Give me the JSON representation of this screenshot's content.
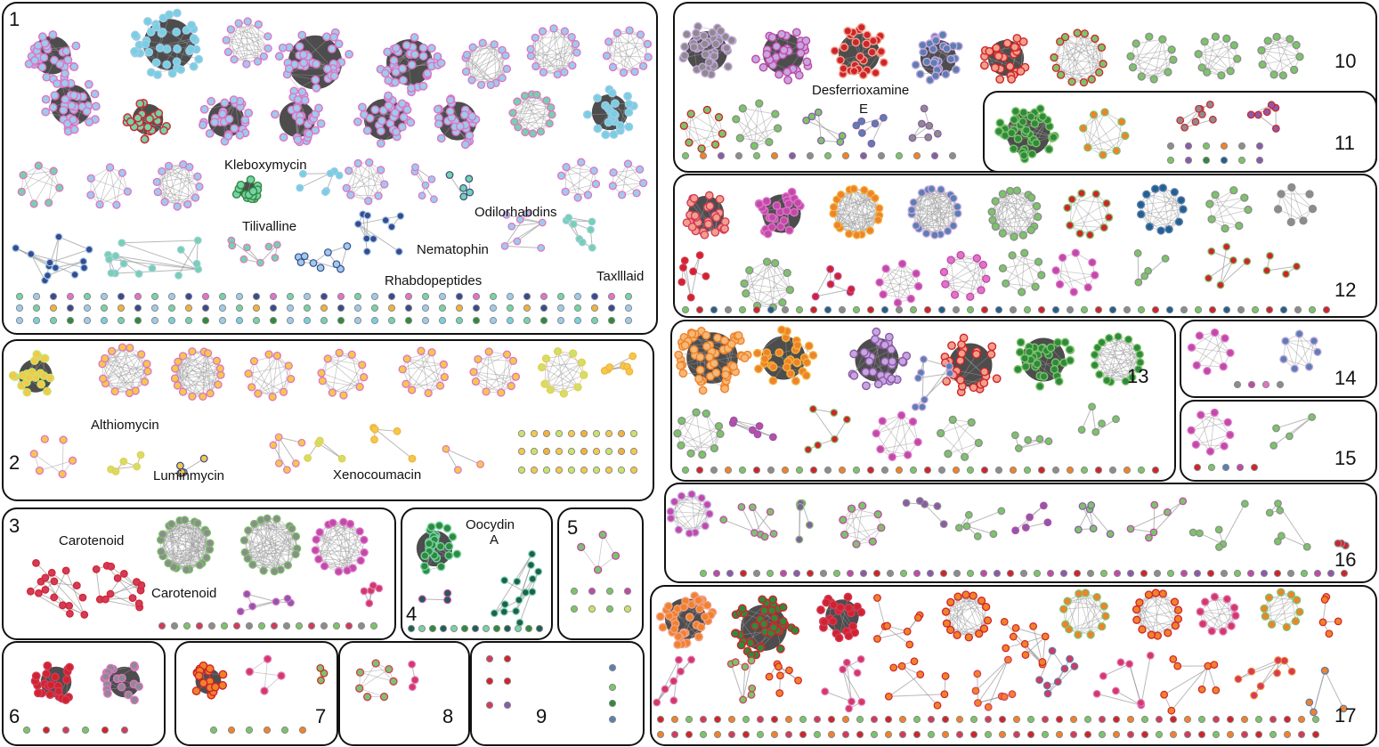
{
  "colors": {
    "panel_stroke": "#111111",
    "edge": "#9a9a9a",
    "edge_dense": "#3a3a3a",
    "light_blue": "#9ecbe9",
    "pink_ring": "#e073c8",
    "cyan": "#78cfe0",
    "green_teal": "#76d2a8",
    "navy": "#3a4a8f",
    "gold": "#f4c84a",
    "lime": "#c9e36a",
    "orange_ring": "#f1b23c",
    "red": "#d0242b",
    "magenta": "#c04aa8",
    "lavender": "#c7a6e0",
    "grey": "#8c8c8c",
    "dark_green": "#2f8a3b",
    "green": "#7cc36a",
    "steel_blue": "#5b7fb0",
    "dark_teal": "#1e5f52",
    "orange": "#f0822a",
    "salmon": "#f3a08a",
    "peach": "#f6b877",
    "crimson": "#d43a5c",
    "violet": "#8b5aa8",
    "dark_blue": "#24608e"
  },
  "panels": [
    {
      "id": "1",
      "label": "1"
    },
    {
      "id": "2",
      "label": "2"
    },
    {
      "id": "3",
      "label": "3"
    },
    {
      "id": "4",
      "label": "4"
    },
    {
      "id": "5",
      "label": "5"
    },
    {
      "id": "6",
      "label": "6"
    },
    {
      "id": "7",
      "label": "7"
    },
    {
      "id": "8",
      "label": "8"
    },
    {
      "id": "9",
      "label": "9"
    },
    {
      "id": "10",
      "label": "10"
    },
    {
      "id": "11",
      "label": "11"
    },
    {
      "id": "12",
      "label": "12"
    },
    {
      "id": "13",
      "label": "13"
    },
    {
      "id": "14",
      "label": "14"
    },
    {
      "id": "15",
      "label": "15"
    },
    {
      "id": "16",
      "label": "16"
    },
    {
      "id": "17",
      "label": "17"
    }
  ],
  "annotations": {
    "kleboxymycin": "Kleboxymycin",
    "tilivalline": "Tilivalline",
    "odilorhabdins": "Odilorhabdins",
    "nematophin": "Nematophin",
    "rhabdopeptides": "Rhabdopeptides",
    "taxlllaid": "Taxlllaid",
    "althiomycin": "Althiomycin",
    "luminmycin": "Luminmycin",
    "xenocoumacin": "Xenocoumacin",
    "carotenoid_1": "Carotenoid",
    "carotenoid_2": "Carotenoid",
    "oocydin_1": "Oocydin",
    "oocydin_2": "A",
    "desferrioxamine_1": "Desferrioxamine",
    "desferrioxamine_2": "E"
  }
}
